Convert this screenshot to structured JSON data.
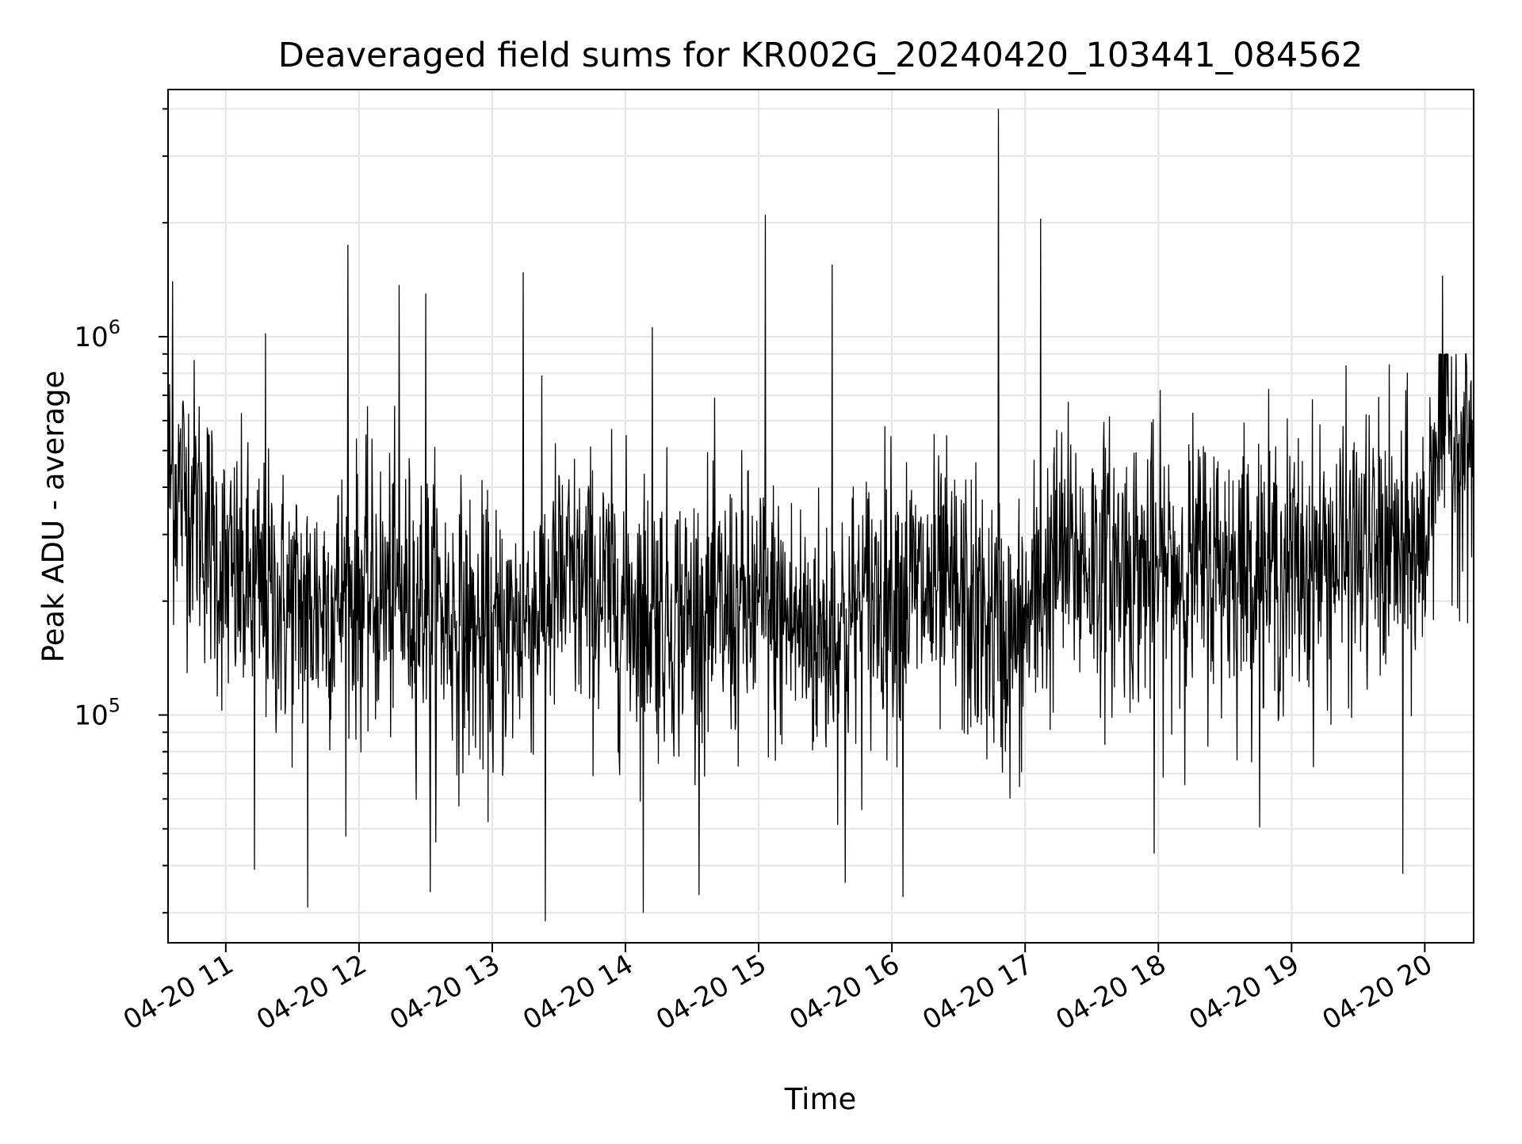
{
  "chart_data": {
    "type": "line",
    "title": "Deaveraged field sums for KR002G_20240420_103441_084562",
    "xlabel": "Time",
    "ylabel": "Peak ADU - average",
    "x_range": [
      "2024-04-20 10:34",
      "2024-04-20 20:22"
    ],
    "x_ticks": [
      {
        "value": "2024-04-20 11:00",
        "label": "04-20 11"
      },
      {
        "value": "2024-04-20 12:00",
        "label": "04-20 12"
      },
      {
        "value": "2024-04-20 13:00",
        "label": "04-20 13"
      },
      {
        "value": "2024-04-20 14:00",
        "label": "04-20 14"
      },
      {
        "value": "2024-04-20 15:00",
        "label": "04-20 15"
      },
      {
        "value": "2024-04-20 16:00",
        "label": "04-20 16"
      },
      {
        "value": "2024-04-20 17:00",
        "label": "04-20 17"
      },
      {
        "value": "2024-04-20 18:00",
        "label": "04-20 18"
      },
      {
        "value": "2024-04-20 19:00",
        "label": "04-20 19"
      },
      {
        "value": "2024-04-20 20:00",
        "label": "04-20 20"
      }
    ],
    "y_scale": "log",
    "ylim": [
      25000,
      4500000
    ],
    "y_ticks": [
      {
        "value": 100000,
        "base": "10",
        "exponent": "5"
      },
      {
        "value": 1000000,
        "base": "10",
        "exponent": "6"
      }
    ],
    "grid": true,
    "line_color": "#000000",
    "grid_color": "#e6e6e6",
    "series_envelope": [
      {
        "t": "2024-04-20 10:34",
        "median": 420000
      },
      {
        "t": "2024-04-20 10:45",
        "median": 380000
      },
      {
        "t": "2024-04-20 11:00",
        "median": 230000
      },
      {
        "t": "2024-04-20 11:30",
        "median": 190000
      },
      {
        "t": "2024-04-20 12:00",
        "median": 210000
      },
      {
        "t": "2024-04-20 12:30",
        "median": 200000
      },
      {
        "t": "2024-04-20 13:00",
        "median": 150000
      },
      {
        "t": "2024-04-20 13:30",
        "median": 220000
      },
      {
        "t": "2024-04-20 14:00",
        "median": 200000
      },
      {
        "t": "2024-04-20 14:30",
        "median": 180000
      },
      {
        "t": "2024-04-20 15:00",
        "median": 190000
      },
      {
        "t": "2024-04-20 15:30",
        "median": 160000
      },
      {
        "t": "2024-04-20 16:00",
        "median": 220000
      },
      {
        "t": "2024-04-20 16:30",
        "median": 200000
      },
      {
        "t": "2024-04-20 16:55",
        "median": 150000
      },
      {
        "t": "2024-04-20 17:15",
        "median": 260000
      },
      {
        "t": "2024-04-20 18:00",
        "median": 240000
      },
      {
        "t": "2024-04-20 18:30",
        "median": 250000
      },
      {
        "t": "2024-04-20 19:00",
        "median": 240000
      },
      {
        "t": "2024-04-20 19:30",
        "median": 270000
      },
      {
        "t": "2024-04-20 20:00",
        "median": 270000
      },
      {
        "t": "2024-04-20 20:05",
        "median": 600000
      },
      {
        "t": "2024-04-20 20:22",
        "median": 500000
      }
    ],
    "spikes": [
      {
        "t": "2024-04-20 10:36",
        "value": 1400000
      },
      {
        "t": "2024-04-20 11:18",
        "value": 1020000
      },
      {
        "t": "2024-04-20 11:55",
        "value": 1750000
      },
      {
        "t": "2024-04-20 12:18",
        "value": 1370000
      },
      {
        "t": "2024-04-20 12:30",
        "value": 1300000
      },
      {
        "t": "2024-04-20 13:14",
        "value": 1480000
      },
      {
        "t": "2024-04-20 14:12",
        "value": 1060000
      },
      {
        "t": "2024-04-20 15:03",
        "value": 2100000
      },
      {
        "t": "2024-04-20 15:33",
        "value": 1550000
      },
      {
        "t": "2024-04-20 16:48",
        "value": 4000000
      },
      {
        "t": "2024-04-20 17:07",
        "value": 2050000
      },
      {
        "t": "2024-04-20 20:08",
        "value": 1450000
      }
    ],
    "dips": [
      {
        "t": "2024-04-20 11:13",
        "value": 39000
      },
      {
        "t": "2024-04-20 11:37",
        "value": 31000
      },
      {
        "t": "2024-04-20 12:32",
        "value": 34000
      },
      {
        "t": "2024-04-20 13:24",
        "value": 28500
      },
      {
        "t": "2024-04-20 14:08",
        "value": 30000
      },
      {
        "t": "2024-04-20 15:39",
        "value": 36000
      },
      {
        "t": "2024-04-20 16:05",
        "value": 33000
      },
      {
        "t": "2024-04-20 17:58",
        "value": 43000
      },
      {
        "t": "2024-04-20 19:50",
        "value": 38000
      }
    ]
  }
}
